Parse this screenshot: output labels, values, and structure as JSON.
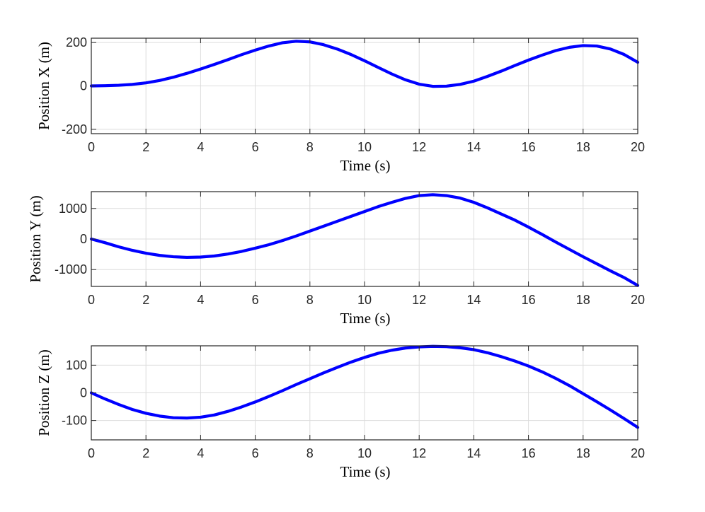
{
  "chart_data": [
    {
      "type": "line",
      "xlabel": "Time (s)",
      "ylabel": "Position X (m)",
      "xlim": [
        0,
        20
      ],
      "ylim": [
        -220,
        220
      ],
      "xticks": [
        0,
        2,
        4,
        6,
        8,
        10,
        12,
        14,
        16,
        18,
        20
      ],
      "yticks": [
        -200,
        0,
        200
      ],
      "ytick_labels": [
        "-200",
        "0",
        "200"
      ],
      "grid": true,
      "line_color": "#0000ff",
      "series": [
        {
          "x": [
            0,
            0.5,
            1,
            1.5,
            2,
            2.5,
            3,
            3.5,
            4,
            4.5,
            5,
            5.5,
            6,
            6.5,
            7,
            7.5,
            8,
            8.5,
            9,
            9.5,
            10,
            10.5,
            11,
            11.5,
            12,
            12.5,
            13,
            13.5,
            14,
            14.5,
            15,
            15.5,
            16,
            16.5,
            17,
            17.5,
            18,
            18.5,
            19,
            19.5,
            20
          ],
          "y": [
            0,
            1,
            3,
            7,
            14,
            25,
            40,
            58,
            78,
            99,
            121,
            144,
            165,
            184,
            199,
            206,
            203,
            190,
            170,
            145,
            116,
            85,
            55,
            28,
            8,
            -2,
            -1,
            7,
            22,
            44,
            68,
            94,
            119,
            142,
            163,
            178,
            186,
            184,
            170,
            145,
            109
          ]
        }
      ]
    },
    {
      "type": "line",
      "xlabel": "Time (s)",
      "ylabel": "Position Y (m)",
      "xlim": [
        0,
        20
      ],
      "ylim": [
        -1550,
        1550
      ],
      "xticks": [
        0,
        2,
        4,
        6,
        8,
        10,
        12,
        14,
        16,
        18,
        20
      ],
      "yticks": [
        -1000,
        0,
        1000
      ],
      "ytick_labels": [
        "-1000",
        "0",
        "1000"
      ],
      "grid": true,
      "line_color": "#0000ff",
      "series": [
        {
          "x": [
            0,
            0.5,
            1,
            1.5,
            2,
            2.5,
            3,
            3.5,
            4,
            4.5,
            5,
            5.5,
            6,
            6.5,
            7,
            7.5,
            8,
            8.5,
            9,
            9.5,
            10,
            10.5,
            11,
            11.5,
            12,
            12.5,
            13,
            13.5,
            14,
            14.5,
            15,
            15.5,
            16,
            16.5,
            17,
            17.5,
            18,
            18.5,
            19,
            19.5,
            20
          ],
          "y": [
            0,
            -120,
            -255,
            -370,
            -465,
            -535,
            -580,
            -600,
            -590,
            -555,
            -490,
            -405,
            -300,
            -185,
            -50,
            100,
            260,
            420,
            580,
            740,
            900,
            1060,
            1200,
            1330,
            1420,
            1450,
            1420,
            1340,
            1200,
            1020,
            820,
            620,
            390,
            150,
            -100,
            -340,
            -580,
            -810,
            -1040,
            -1260,
            -1520
          ]
        }
      ]
    },
    {
      "type": "line",
      "xlabel": "Time (s)",
      "ylabel": "Position Z (m)",
      "xlim": [
        0,
        20
      ],
      "ylim": [
        -170,
        170
      ],
      "xticks": [
        0,
        2,
        4,
        6,
        8,
        10,
        12,
        14,
        16,
        18,
        20
      ],
      "yticks": [
        -100,
        0,
        100
      ],
      "ytick_labels": [
        "-100",
        "0",
        "100"
      ],
      "grid": true,
      "line_color": "#0000ff",
      "series": [
        {
          "x": [
            0,
            0.5,
            1,
            1.5,
            2,
            2.5,
            3,
            3.5,
            4,
            4.5,
            5,
            5.5,
            6,
            6.5,
            7,
            7.5,
            8,
            8.5,
            9,
            9.5,
            10,
            10.5,
            11,
            11.5,
            12,
            12.5,
            13,
            13.5,
            14,
            14.5,
            15,
            15.5,
            16,
            16.5,
            17,
            17.5,
            18,
            18.5,
            19,
            19.5,
            20
          ],
          "y": [
            0,
            -22,
            -42,
            -60,
            -74,
            -84,
            -90,
            -91,
            -88,
            -80,
            -67,
            -51,
            -33,
            -13,
            8,
            30,
            51,
            72,
            92,
            111,
            128,
            143,
            154,
            162,
            166,
            168,
            167,
            163,
            156,
            145,
            131,
            115,
            97,
            76,
            52,
            26,
            -3,
            -32,
            -62,
            -93,
            -125
          ]
        }
      ]
    }
  ]
}
